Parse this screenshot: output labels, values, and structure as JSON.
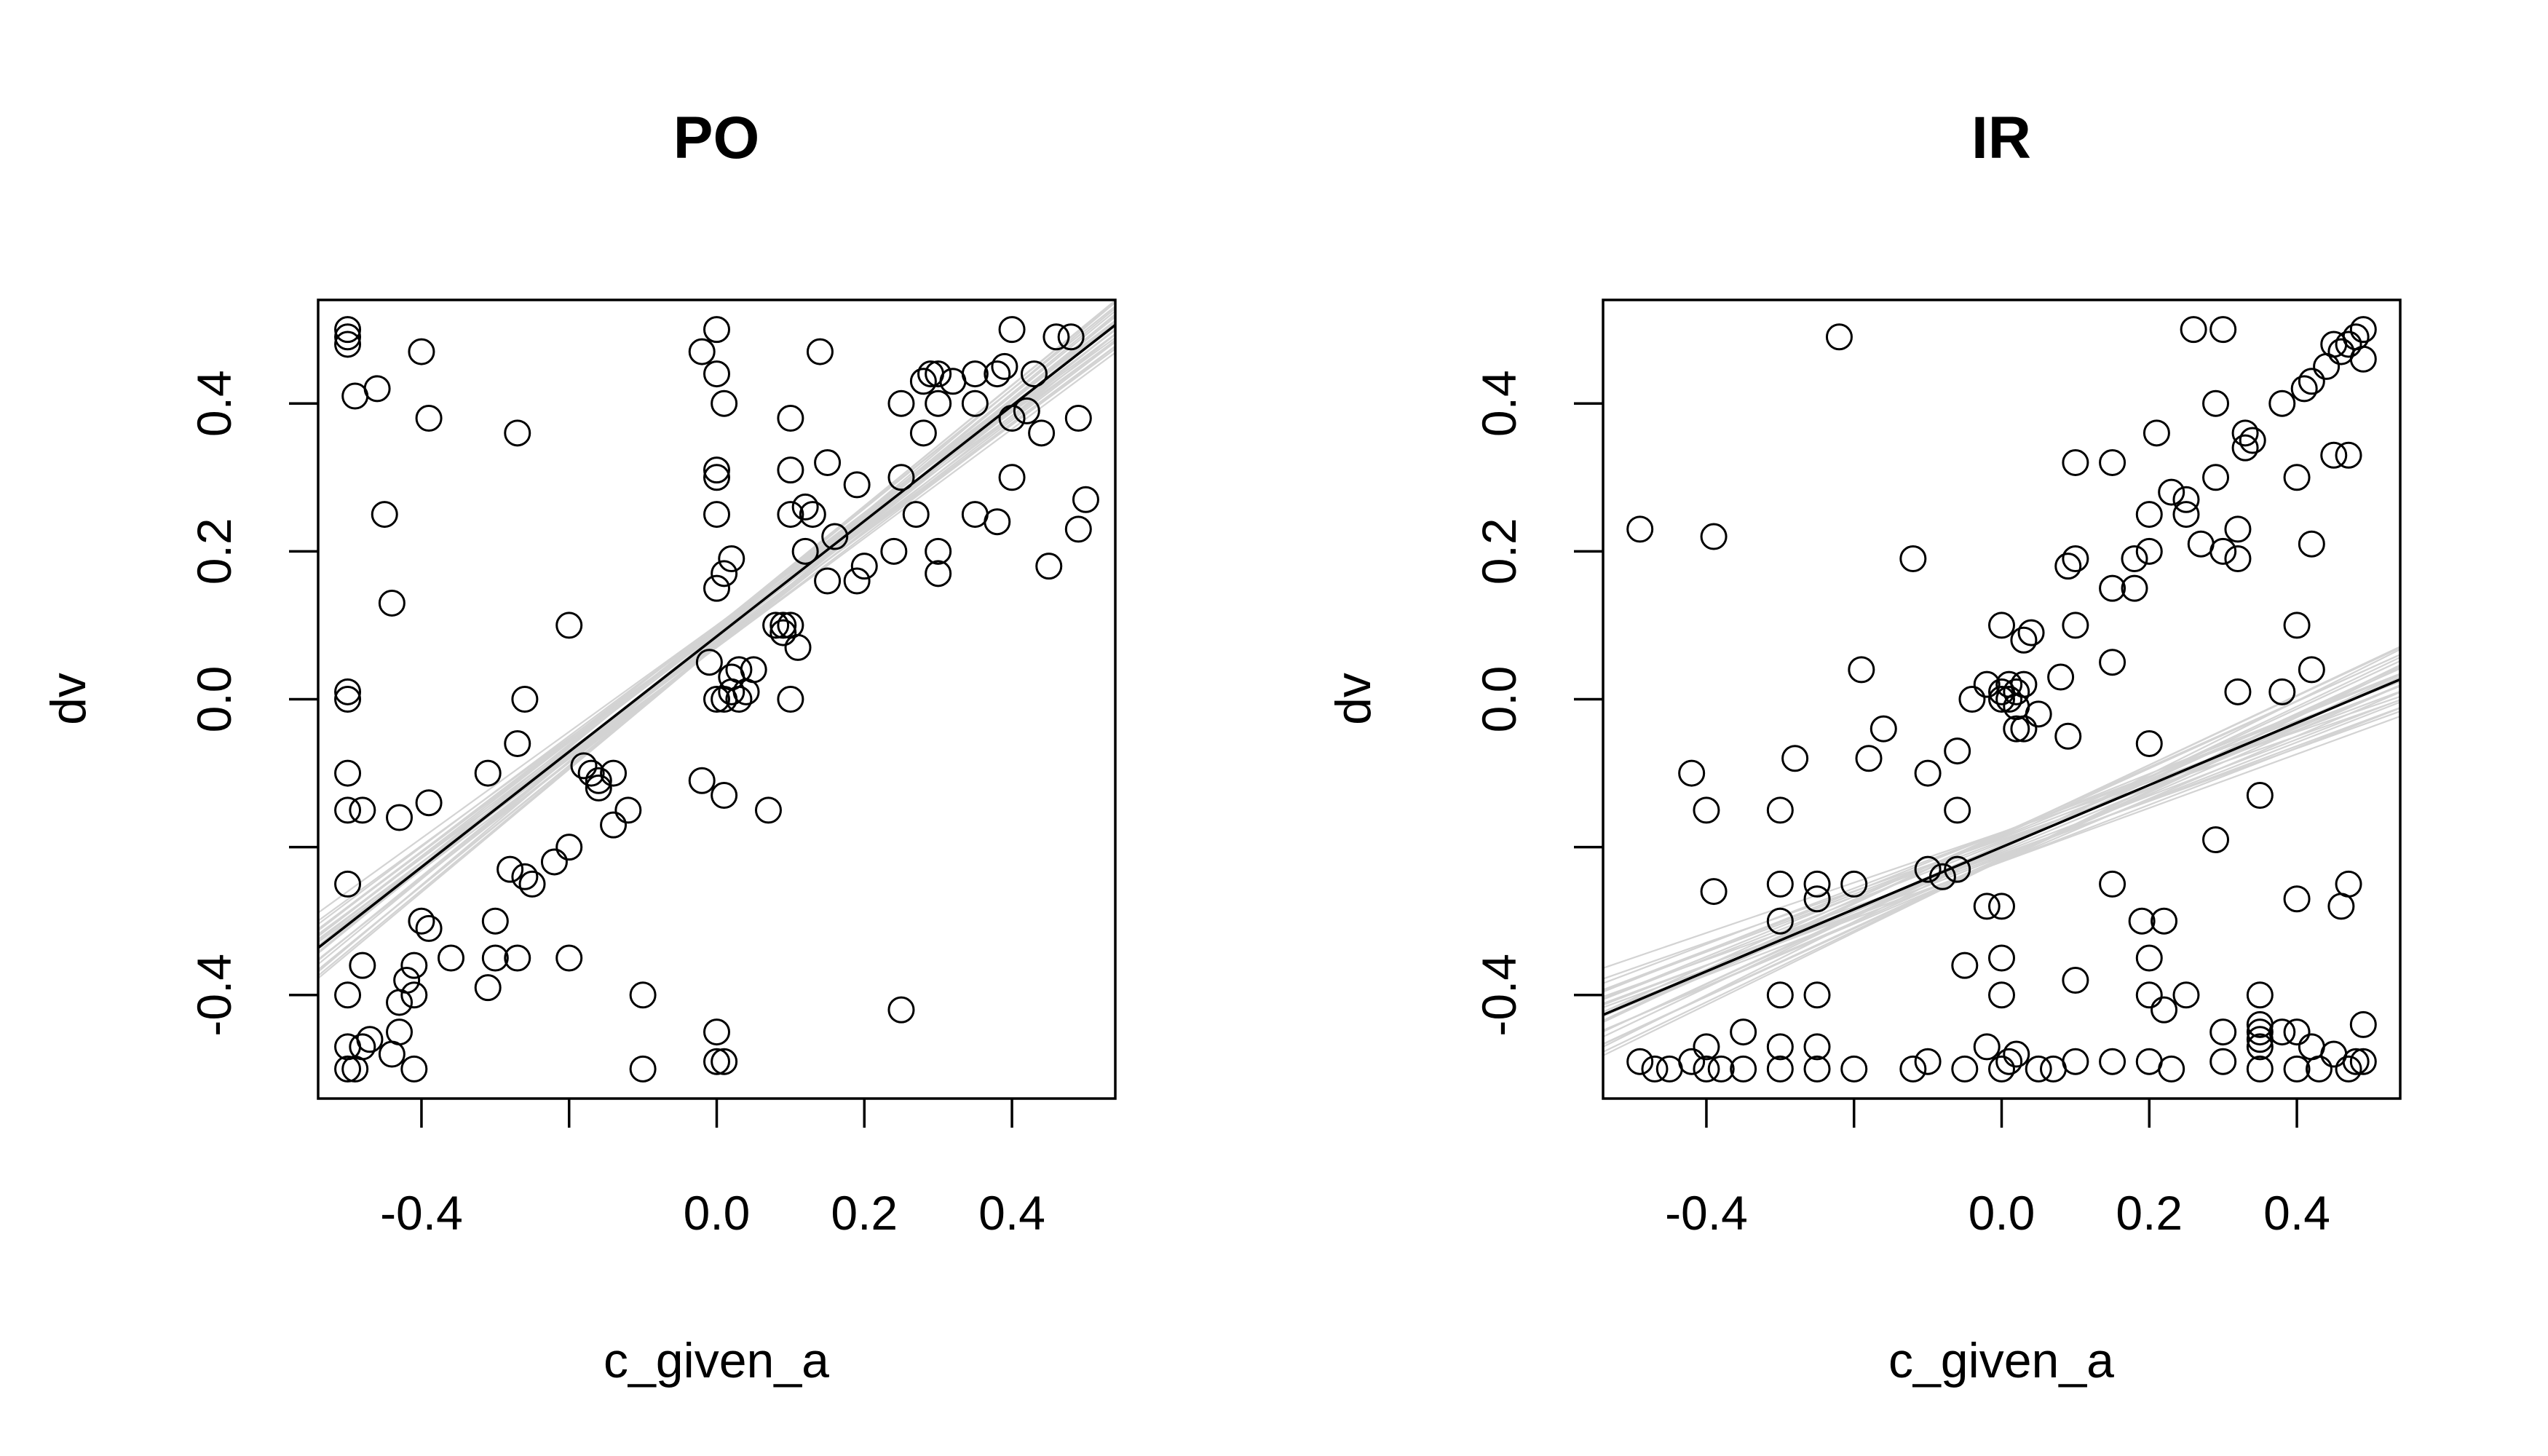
{
  "chart_data": [
    {
      "type": "scatter",
      "title": "PO",
      "xlabel": "c_given_a",
      "ylabel": "dv",
      "xlim": [
        -0.54,
        0.54
      ],
      "ylim": [
        -0.54,
        0.54
      ],
      "x_ticks": [
        -0.4,
        -0.2,
        0.0,
        0.2,
        0.4
      ],
      "x_tick_labels": [
        "-0.4",
        "",
        "0.0",
        "0.2",
        "0.4"
      ],
      "y_ticks": [
        -0.4,
        -0.2,
        0.0,
        0.2,
        0.4
      ],
      "y_tick_labels": [
        "-0.4",
        "",
        "0.0",
        "0.2",
        "0.4"
      ],
      "grid": false,
      "legend": "none",
      "band_color": "#d3d3d3",
      "fit_line": {
        "intercept": 0.085,
        "slope": 0.78
      },
      "band_lines": 30,
      "band_spread": 0.06,
      "points": [
        [
          -0.5,
          0.5
        ],
        [
          -0.5,
          0.49
        ],
        [
          -0.5,
          0.48
        ],
        [
          -0.49,
          0.41
        ],
        [
          -0.46,
          0.42
        ],
        [
          -0.45,
          0.25
        ],
        [
          -0.44,
          0.13
        ],
        [
          -0.4,
          0.47
        ],
        [
          -0.39,
          0.38
        ],
        [
          -0.27,
          0.36
        ],
        [
          -0.5,
          0.01
        ],
        [
          -0.5,
          0.0
        ],
        [
          -0.26,
          0.0
        ],
        [
          -0.2,
          0.1
        ],
        [
          -0.5,
          -0.1
        ],
        [
          -0.5,
          -0.15
        ],
        [
          -0.48,
          -0.15
        ],
        [
          -0.43,
          -0.16
        ],
        [
          -0.39,
          -0.14
        ],
        [
          -0.31,
          -0.1
        ],
        [
          -0.27,
          -0.06
        ],
        [
          -0.18,
          -0.09
        ],
        [
          -0.17,
          -0.1
        ],
        [
          -0.16,
          -0.12
        ],
        [
          -0.16,
          -0.11
        ],
        [
          -0.14,
          -0.1
        ],
        [
          -0.14,
          -0.17
        ],
        [
          -0.12,
          -0.15
        ],
        [
          -0.2,
          -0.2
        ],
        [
          -0.22,
          -0.22
        ],
        [
          -0.25,
          -0.25
        ],
        [
          -0.26,
          -0.24
        ],
        [
          -0.28,
          -0.23
        ],
        [
          -0.5,
          -0.25
        ],
        [
          -0.3,
          -0.3
        ],
        [
          -0.39,
          -0.31
        ],
        [
          -0.36,
          -0.35
        ],
        [
          -0.41,
          -0.36
        ],
        [
          -0.42,
          -0.38
        ],
        [
          -0.41,
          -0.4
        ],
        [
          -0.43,
          -0.41
        ],
        [
          -0.43,
          -0.45
        ],
        [
          -0.44,
          -0.48
        ],
        [
          -0.47,
          -0.46
        ],
        [
          -0.48,
          -0.47
        ],
        [
          -0.5,
          -0.47
        ],
        [
          -0.49,
          -0.5
        ],
        [
          -0.5,
          -0.5
        ],
        [
          -0.41,
          -0.5
        ],
        [
          -0.3,
          -0.35
        ],
        [
          -0.31,
          -0.39
        ],
        [
          -0.27,
          -0.35
        ],
        [
          -0.2,
          -0.35
        ],
        [
          -0.1,
          -0.4
        ],
        [
          -0.1,
          -0.5
        ],
        [
          -0.5,
          -0.4
        ],
        [
          -0.48,
          -0.36
        ],
        [
          -0.4,
          -0.3
        ],
        [
          -0.02,
          0.47
        ],
        [
          0.0,
          0.5
        ],
        [
          0.0,
          0.44
        ],
        [
          0.0,
          0.31
        ],
        [
          0.0,
          0.3
        ],
        [
          0.01,
          0.4
        ],
        [
          0.0,
          0.25
        ],
        [
          0.0,
          0.15
        ],
        [
          0.01,
          0.17
        ],
        [
          0.02,
          0.19
        ],
        [
          0.1,
          0.38
        ],
        [
          0.1,
          0.31
        ],
        [
          0.14,
          0.47
        ],
        [
          0.15,
          0.32
        ],
        [
          0.1,
          0.25
        ],
        [
          0.12,
          0.26
        ],
        [
          0.13,
          0.25
        ],
        [
          0.12,
          0.2
        ],
        [
          0.16,
          0.22
        ],
        [
          0.15,
          0.16
        ],
        [
          0.19,
          0.29
        ],
        [
          0.2,
          0.18
        ],
        [
          0.19,
          0.16
        ],
        [
          0.24,
          0.2
        ],
        [
          0.25,
          0.4
        ],
        [
          0.28,
          0.43
        ],
        [
          0.29,
          0.44
        ],
        [
          0.3,
          0.44
        ],
        [
          0.32,
          0.43
        ],
        [
          0.35,
          0.44
        ],
        [
          0.38,
          0.44
        ],
        [
          0.39,
          0.45
        ],
        [
          0.4,
          0.5
        ],
        [
          0.43,
          0.44
        ],
        [
          0.46,
          0.49
        ],
        [
          0.48,
          0.49
        ],
        [
          0.3,
          0.4
        ],
        [
          0.28,
          0.36
        ],
        [
          0.35,
          0.4
        ],
        [
          0.4,
          0.38
        ],
        [
          0.42,
          0.39
        ],
        [
          0.44,
          0.36
        ],
        [
          0.49,
          0.38
        ],
        [
          0.5,
          0.27
        ],
        [
          0.49,
          0.23
        ],
        [
          0.45,
          0.18
        ],
        [
          0.3,
          0.2
        ],
        [
          0.3,
          0.17
        ],
        [
          0.35,
          0.25
        ],
        [
          0.38,
          0.24
        ],
        [
          0.4,
          0.3
        ],
        [
          0.27,
          0.25
        ],
        [
          0.25,
          0.3
        ],
        [
          -0.01,
          0.05
        ],
        [
          0.0,
          0.0
        ],
        [
          0.01,
          0.0
        ],
        [
          0.02,
          0.01
        ],
        [
          0.03,
          0.0
        ],
        [
          0.04,
          0.01
        ],
        [
          0.02,
          0.03
        ],
        [
          0.03,
          0.04
        ],
        [
          0.05,
          0.04
        ],
        [
          0.1,
          0.0
        ],
        [
          0.08,
          0.1
        ],
        [
          0.09,
          0.1
        ],
        [
          0.1,
          0.1
        ],
        [
          0.09,
          0.09
        ],
        [
          0.11,
          0.07
        ],
        [
          -0.02,
          -0.11
        ],
        [
          0.01,
          -0.13
        ],
        [
          0.07,
          -0.15
        ],
        [
          0.0,
          -0.45
        ],
        [
          0.0,
          -0.49
        ],
        [
          0.01,
          -0.49
        ],
        [
          0.25,
          -0.42
        ]
      ]
    },
    {
      "type": "scatter",
      "title": "IR",
      "xlabel": "c_given_a",
      "ylabel": "dv",
      "xlim": [
        -0.54,
        0.54
      ],
      "ylim": [
        -0.54,
        0.54
      ],
      "x_ticks": [
        -0.4,
        -0.2,
        0.0,
        0.2,
        0.4
      ],
      "x_tick_labels": [
        "-0.4",
        "",
        "0.0",
        "0.2",
        "0.4"
      ],
      "y_ticks": [
        -0.4,
        -0.2,
        0.0,
        0.2,
        0.4
      ],
      "y_tick_labels": [
        "-0.4",
        "",
        "0.0",
        "0.2",
        "0.4"
      ],
      "grid": false,
      "legend": "none",
      "band_color": "#d3d3d3",
      "fit_line": {
        "intercept": -0.2,
        "slope": 0.42
      },
      "band_lines": 30,
      "band_spread": 0.08,
      "points": [
        [
          -0.49,
          0.23
        ],
        [
          -0.39,
          0.22
        ],
        [
          -0.22,
          0.49
        ],
        [
          -0.19,
          0.04
        ],
        [
          -0.12,
          0.19
        ],
        [
          -0.18,
          -0.08
        ],
        [
          -0.16,
          -0.04
        ],
        [
          -0.06,
          -0.07
        ],
        [
          -0.04,
          0.0
        ],
        [
          -0.02,
          0.02
        ],
        [
          0.0,
          0.1
        ],
        [
          0.0,
          0.0
        ],
        [
          0.0,
          0.01
        ],
        [
          0.01,
          0.02
        ],
        [
          0.01,
          0.0
        ],
        [
          0.02,
          0.01
        ],
        [
          0.02,
          -0.01
        ],
        [
          0.03,
          0.02
        ],
        [
          0.02,
          -0.04
        ],
        [
          0.03,
          -0.04
        ],
        [
          0.03,
          0.08
        ],
        [
          0.04,
          0.09
        ],
        [
          0.05,
          -0.02
        ],
        [
          0.08,
          0.03
        ],
        [
          0.09,
          -0.05
        ],
        [
          0.09,
          0.18
        ],
        [
          0.1,
          0.19
        ],
        [
          0.1,
          0.1
        ],
        [
          0.1,
          0.32
        ],
        [
          0.15,
          0.32
        ],
        [
          0.15,
          0.15
        ],
        [
          0.15,
          0.05
        ],
        [
          0.18,
          0.19
        ],
        [
          0.18,
          0.15
        ],
        [
          0.2,
          0.25
        ],
        [
          0.2,
          0.2
        ],
        [
          0.21,
          0.36
        ],
        [
          0.23,
          0.28
        ],
        [
          0.25,
          0.27
        ],
        [
          0.25,
          0.25
        ],
        [
          0.26,
          0.5
        ],
        [
          0.27,
          0.21
        ],
        [
          0.3,
          0.5
        ],
        [
          0.29,
          0.4
        ],
        [
          0.29,
          0.3
        ],
        [
          0.3,
          0.2
        ],
        [
          0.32,
          0.19
        ],
        [
          0.32,
          0.23
        ],
        [
          0.33,
          0.34
        ],
        [
          0.34,
          0.35
        ],
        [
          0.33,
          0.36
        ],
        [
          0.38,
          0.4
        ],
        [
          0.4,
          0.3
        ],
        [
          0.41,
          0.42
        ],
        [
          0.42,
          0.43
        ],
        [
          0.42,
          0.21
        ],
        [
          0.44,
          0.45
        ],
        [
          0.45,
          0.48
        ],
        [
          0.46,
          0.47
        ],
        [
          0.47,
          0.48
        ],
        [
          0.48,
          0.49
        ],
        [
          0.49,
          0.5
        ],
        [
          0.49,
          0.46
        ],
        [
          0.47,
          0.33
        ],
        [
          0.45,
          0.33
        ],
        [
          0.42,
          0.04
        ],
        [
          0.4,
          0.1
        ],
        [
          0.38,
          0.01
        ],
        [
          0.32,
          0.01
        ],
        [
          0.35,
          -0.13
        ],
        [
          0.29,
          -0.19
        ],
        [
          0.2,
          -0.06
        ],
        [
          0.15,
          -0.25
        ],
        [
          0.19,
          -0.3
        ],
        [
          0.22,
          -0.3
        ],
        [
          0.2,
          -0.35
        ],
        [
          0.2,
          -0.4
        ],
        [
          0.22,
          -0.42
        ],
        [
          0.25,
          -0.4
        ],
        [
          0.3,
          -0.45
        ],
        [
          0.35,
          -0.4
        ],
        [
          0.35,
          -0.44
        ],
        [
          0.35,
          -0.45
        ],
        [
          0.35,
          -0.46
        ],
        [
          0.35,
          -0.47
        ],
        [
          0.38,
          -0.45
        ],
        [
          0.4,
          -0.27
        ],
        [
          0.4,
          -0.45
        ],
        [
          0.46,
          -0.28
        ],
        [
          0.47,
          -0.25
        ],
        [
          0.49,
          -0.44
        ],
        [
          0.49,
          -0.49
        ],
        [
          0.45,
          -0.48
        ],
        [
          0.42,
          -0.47
        ],
        [
          0.1,
          -0.38
        ],
        [
          0.0,
          -0.28
        ],
        [
          0.0,
          -0.35
        ],
        [
          0.0,
          -0.4
        ],
        [
          -0.05,
          -0.36
        ],
        [
          -0.02,
          -0.28
        ],
        [
          -0.06,
          -0.23
        ],
        [
          -0.08,
          -0.24
        ],
        [
          -0.1,
          -0.23
        ],
        [
          -0.2,
          -0.25
        ],
        [
          -0.25,
          -0.27
        ],
        [
          -0.25,
          -0.25
        ],
        [
          -0.3,
          -0.25
        ],
        [
          -0.3,
          -0.3
        ],
        [
          -0.3,
          -0.4
        ],
        [
          -0.25,
          -0.4
        ],
        [
          -0.25,
          -0.47
        ],
        [
          -0.3,
          -0.47
        ],
        [
          -0.35,
          -0.45
        ],
        [
          -0.4,
          -0.47
        ],
        [
          -0.38,
          -0.5
        ],
        [
          -0.4,
          -0.5
        ],
        [
          -0.42,
          -0.49
        ],
        [
          -0.45,
          -0.5
        ],
        [
          -0.47,
          -0.5
        ],
        [
          -0.49,
          -0.49
        ],
        [
          -0.3,
          -0.15
        ],
        [
          -0.4,
          -0.15
        ],
        [
          -0.39,
          -0.26
        ],
        [
          -0.28,
          -0.08
        ],
        [
          -0.42,
          -0.1
        ],
        [
          -0.1,
          -0.1
        ],
        [
          -0.06,
          -0.15
        ],
        [
          -0.35,
          -0.5
        ],
        [
          -0.3,
          -0.5
        ],
        [
          -0.25,
          -0.5
        ],
        [
          -0.2,
          -0.5
        ],
        [
          -0.12,
          -0.5
        ],
        [
          -0.1,
          -0.49
        ],
        [
          -0.05,
          -0.5
        ],
        [
          -0.02,
          -0.47
        ],
        [
          0.0,
          -0.5
        ],
        [
          0.01,
          -0.49
        ],
        [
          0.02,
          -0.48
        ],
        [
          0.05,
          -0.5
        ],
        [
          0.07,
          -0.5
        ],
        [
          0.1,
          -0.49
        ],
        [
          0.15,
          -0.49
        ],
        [
          0.2,
          -0.49
        ],
        [
          0.23,
          -0.5
        ],
        [
          0.3,
          -0.49
        ],
        [
          0.35,
          -0.5
        ],
        [
          0.4,
          -0.5
        ],
        [
          0.43,
          -0.5
        ],
        [
          0.47,
          -0.5
        ],
        [
          0.48,
          -0.49
        ]
      ]
    }
  ]
}
